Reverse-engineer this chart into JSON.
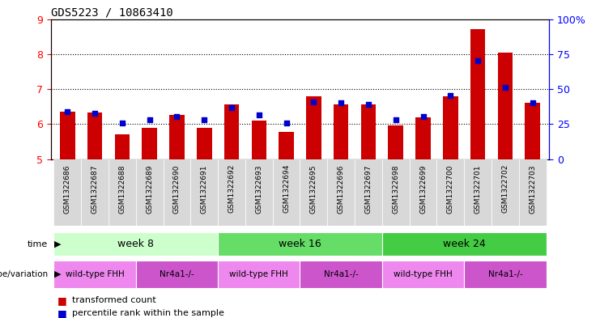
{
  "title": "GDS5223 / 10863410",
  "samples": [
    "GSM1322686",
    "GSM1322687",
    "GSM1322688",
    "GSM1322689",
    "GSM1322690",
    "GSM1322691",
    "GSM1322692",
    "GSM1322693",
    "GSM1322694",
    "GSM1322695",
    "GSM1322696",
    "GSM1322697",
    "GSM1322698",
    "GSM1322699",
    "GSM1322700",
    "GSM1322701",
    "GSM1322702",
    "GSM1322703"
  ],
  "red_values": [
    6.35,
    6.32,
    5.7,
    5.9,
    6.25,
    5.9,
    6.55,
    6.1,
    5.78,
    6.8,
    6.55,
    6.55,
    5.95,
    6.2,
    6.8,
    8.72,
    8.05,
    6.6
  ],
  "blue_values": [
    6.35,
    6.3,
    6.02,
    6.12,
    6.22,
    6.12,
    6.47,
    6.25,
    6.02,
    6.62,
    6.6,
    6.56,
    6.12,
    6.22,
    6.82,
    7.8,
    7.05,
    6.6
  ],
  "ylim_left": [
    5,
    9
  ],
  "yticks_left": [
    5,
    6,
    7,
    8,
    9
  ],
  "ylim_right": [
    0,
    100
  ],
  "yticks_right": [
    0,
    25,
    50,
    75,
    100
  ],
  "ytick_right_labels": [
    "0",
    "25",
    "50",
    "75",
    "100%"
  ],
  "bar_color": "#cc0000",
  "dot_color": "#0000cc",
  "weeks": [
    {
      "label": "week 8",
      "start": 0,
      "end": 5,
      "color": "#ccffcc"
    },
    {
      "label": "week 16",
      "start": 6,
      "end": 11,
      "color": "#66dd66"
    },
    {
      "label": "week 24",
      "start": 12,
      "end": 17,
      "color": "#44cc44"
    }
  ],
  "genotypes": [
    {
      "label": "wild-type FHH",
      "start": 0,
      "end": 2,
      "color": "#ee88ee"
    },
    {
      "label": "Nr4a1-/-",
      "start": 3,
      "end": 5,
      "color": "#cc55cc"
    },
    {
      "label": "wild-type FHH",
      "start": 6,
      "end": 8,
      "color": "#ee88ee"
    },
    {
      "label": "Nr4a1-/-",
      "start": 9,
      "end": 11,
      "color": "#cc55cc"
    },
    {
      "label": "wild-type FHH",
      "start": 12,
      "end": 14,
      "color": "#ee88ee"
    },
    {
      "label": "Nr4a1-/-",
      "start": 15,
      "end": 17,
      "color": "#cc55cc"
    }
  ],
  "legend_red": "transformed count",
  "legend_blue": "percentile rank within the sample",
  "time_label": "time",
  "genotype_label": "genotype/variation",
  "sample_row_color": "#cccccc"
}
